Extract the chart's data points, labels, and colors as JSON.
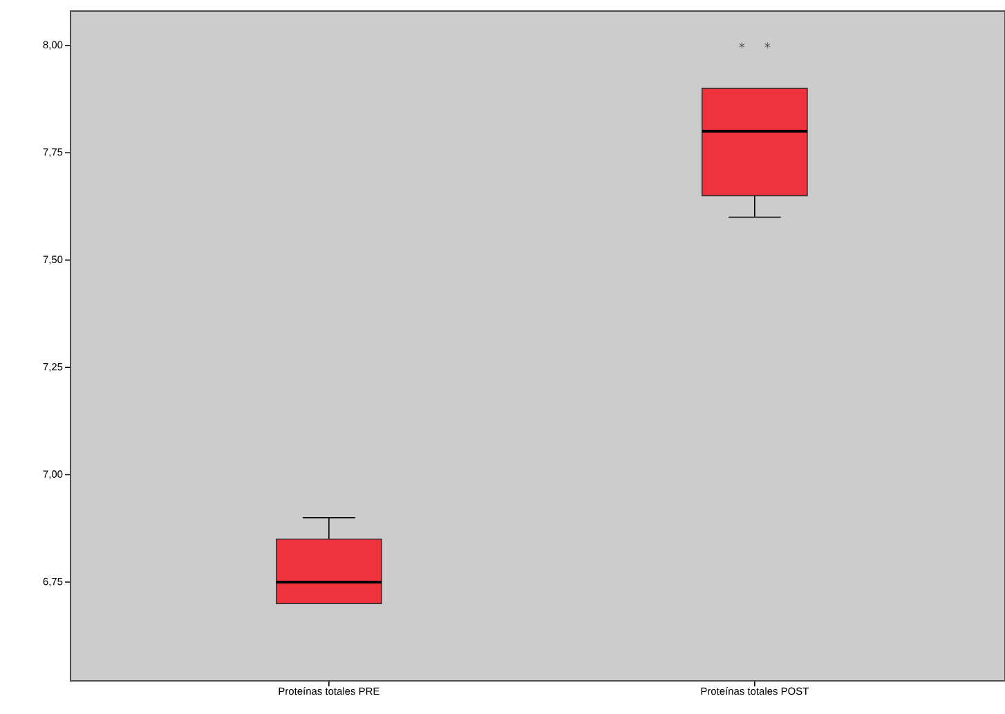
{
  "chart_data": {
    "type": "box",
    "categories": [
      "Proteínas totales PRE",
      "Proteínas totales POST"
    ],
    "boxes": [
      {
        "low": 6.7,
        "q1": 6.7,
        "median": 6.75,
        "q3": 6.85,
        "high": 6.9
      },
      {
        "low": 7.6,
        "q1": 7.65,
        "median": 7.8,
        "q3": 7.9,
        "high": 7.9,
        "outliers": [
          8.0,
          8.0
        ]
      }
    ],
    "color": "#ef333c",
    "marker": "star",
    "grid": false,
    "ylim": [
      6.52,
      8.08
    ],
    "yticks": [
      {
        "value": 6.75,
        "label": "6,75"
      },
      {
        "value": 7.0,
        "label": "7,00"
      },
      {
        "value": 7.25,
        "label": "7,25"
      },
      {
        "value": 7.5,
        "label": "7,50"
      },
      {
        "value": 7.75,
        "label": "7,75"
      },
      {
        "value": 8.0,
        "label": "8,00"
      }
    ]
  }
}
